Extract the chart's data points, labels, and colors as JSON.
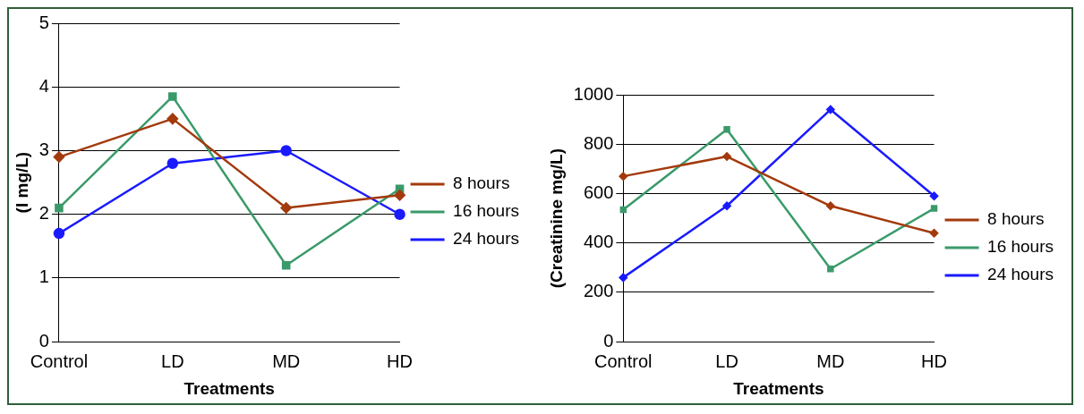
{
  "chart_data": [
    {
      "type": "line",
      "categories": [
        "Control",
        "LD",
        "MD",
        "HD"
      ],
      "xlabel": "Treatments",
      "ylabel": "(I mg/L)",
      "ylim": [
        0,
        5
      ],
      "yticks": [
        0,
        1,
        2,
        3,
        4,
        5
      ],
      "grid": "y",
      "legend": "right",
      "series": [
        {
          "name": "8 hours",
          "color": "#a33a0c",
          "marker": "diamond",
          "values": [
            2.9,
            3.5,
            2.1,
            2.3
          ]
        },
        {
          "name": "16 hours",
          "color": "#3a9a6a",
          "marker": "square",
          "values": [
            2.1,
            3.85,
            1.2,
            2.4
          ]
        },
        {
          "name": "24 hours",
          "color": "#1a1aff",
          "marker": "circle",
          "values": [
            1.7,
            2.8,
            3.0,
            2.0
          ]
        }
      ]
    },
    {
      "type": "line",
      "categories": [
        "Control",
        "LD",
        "MD",
        "HD"
      ],
      "xlabel": "Treatments",
      "ylabel": "(Creatinine mg/L)",
      "ylim": [
        0,
        1000
      ],
      "yticks": [
        0,
        200,
        400,
        600,
        800,
        1000
      ],
      "grid": "y",
      "legend": "right",
      "series": [
        {
          "name": "8 hours",
          "color": "#a33a0c",
          "marker": "diamond",
          "values": [
            670,
            750,
            550,
            440
          ]
        },
        {
          "name": "16 hours",
          "color": "#3a9a6a",
          "marker": "square",
          "values": [
            535,
            860,
            295,
            540
          ]
        },
        {
          "name": "24 hours",
          "color": "#1a1aff",
          "marker": "diamond",
          "values": [
            260,
            550,
            940,
            590
          ]
        }
      ]
    }
  ]
}
